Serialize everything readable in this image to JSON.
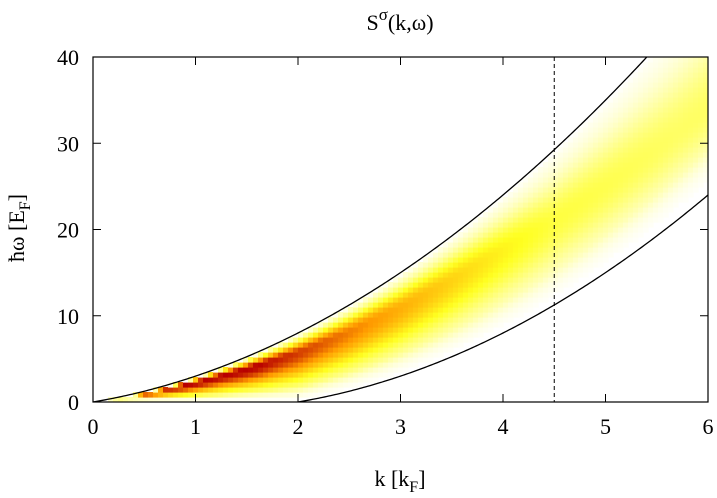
{
  "chart_data": {
    "type": "heatmap",
    "title": "S",
    "title_superscript": "σ",
    "title_suffix": "(k,ω)",
    "xlabel": "k [k",
    "xlabel_sub": "F",
    "xlabel_end": "]",
    "ylabel": "ħω [E",
    "ylabel_sub": "F",
    "ylabel_end": "]",
    "xlim": [
      0,
      6
    ],
    "ylim": [
      0,
      40
    ],
    "xticks": [
      0,
      1,
      2,
      3,
      4,
      5,
      6
    ],
    "yticks": [
      0,
      10,
      20,
      30,
      40
    ],
    "xtick_labels": [
      "0",
      "1",
      "2",
      "3",
      "4",
      "5",
      "6"
    ],
    "ytick_labels": [
      "0",
      "10",
      "20",
      "30",
      "40"
    ],
    "grid": false,
    "colormap": "white-yellow-orange-red",
    "colormap_colors": [
      "#ffffff",
      "#ffff20",
      "#ff9a00",
      "#b80000"
    ],
    "upper_boundary": {
      "function": "omega = k^2 + 2k",
      "color": "#000000"
    },
    "lower_boundary": {
      "function": "omega = k^2 - 2k",
      "color": "#000000"
    },
    "marker_line": {
      "x": 4.5,
      "style": "dashed",
      "color": "#000000"
    },
    "intensity_peak_curve": {
      "k": [
        0.0,
        0.5,
        1.0,
        1.5,
        2.0,
        2.5,
        3.0,
        3.5,
        4.0,
        4.5,
        5.0,
        5.5,
        6.0
      ],
      "omega": [
        0.0,
        0.9,
        2.3,
        3.9,
        5.8,
        8.2,
        11.0,
        14.2,
        17.6,
        21.0,
        25.0,
        29.2,
        34.0
      ]
    }
  }
}
